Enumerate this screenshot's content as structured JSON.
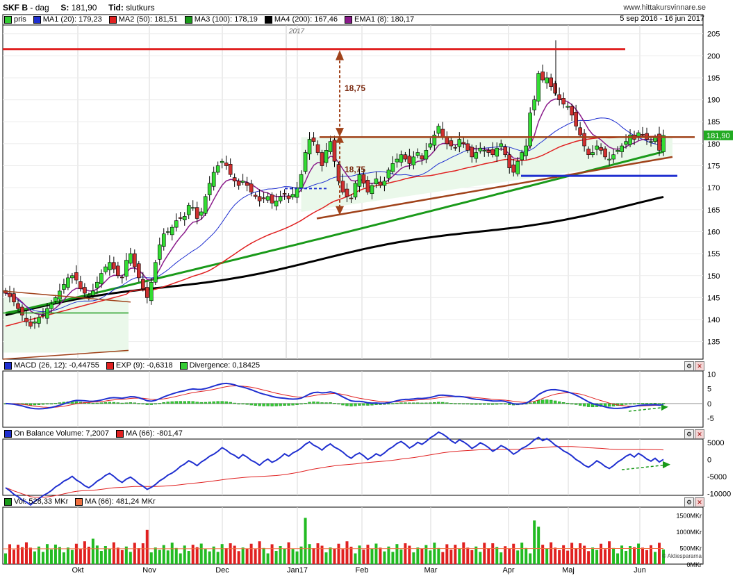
{
  "header": {
    "ticker": "SKF B",
    "interval": "dag",
    "last_label": "S:",
    "last_value": "181,90",
    "type_label": "Tid:",
    "type_value": "slutkurs",
    "site": "www.hittakursvinnare.se",
    "date_range": "5 sep 2016 - 16 jun 2017"
  },
  "main_legend": [
    {
      "label": "pris",
      "color": "#33cc33"
    },
    {
      "label": "MA1 (20): 179,23",
      "color": "#1f2fd0"
    },
    {
      "label": "MA2 (50): 181,51",
      "color": "#e02020"
    },
    {
      "label": "MA3 (100): 178,19",
      "color": "#1a9a1a"
    },
    {
      "label": "MA4 (200): 167,46",
      "color": "#000000"
    },
    {
      "label": "EMA1 (8): 180,17",
      "color": "#8a1a8a"
    }
  ],
  "macd_legend": [
    {
      "label": "MACD (26, 12): -0,44755",
      "color": "#1f2fd0"
    },
    {
      "label": "EXP (9): -0,6318",
      "color": "#e02020"
    },
    {
      "label": "Divergence: 0,18425",
      "color": "#33cc33"
    }
  ],
  "obv_legend": [
    {
      "label": "On Balance Volume: 7,2007",
      "color": "#1f2fd0"
    },
    {
      "label": "MA (66): -801,47",
      "color": "#e02020"
    }
  ],
  "vol_legend": [
    {
      "label": "Vol: 528,33 MKr",
      "color": "#1a9a1a"
    },
    {
      "label": "MA (66): 481,24 MKr",
      "color": "#f07040"
    }
  ],
  "last_price_tag": "181,90",
  "year_marker": "2017",
  "annotation_18_75_a": "18,75",
  "annotation_18_75_b": "18,75",
  "watermark": "© Aktiespararna",
  "chart_data": {
    "type": "candlestick",
    "months": [
      "Okt",
      "Nov",
      "Dec",
      "Jan17",
      "Feb",
      "Mar",
      "Apr",
      "Maj",
      "Jun"
    ],
    "price_axis": {
      "ticks": [
        135,
        140,
        145,
        150,
        155,
        160,
        165,
        170,
        175,
        180,
        185,
        190,
        195,
        200,
        205
      ],
      "ylim": [
        131,
        207
      ]
    },
    "macd_axis": {
      "ticks": [
        10,
        5,
        0,
        -5
      ],
      "ylim": [
        -8,
        11
      ]
    },
    "obv_axis": {
      "ticks": [
        "5000",
        "0",
        "-5000",
        "-10000"
      ],
      "ylim": [
        -10500,
        6000
      ]
    },
    "vol_axis": {
      "ticks": [
        "1500MKr",
        "1000MKr",
        "500MKr",
        "0MKr"
      ]
    },
    "close_prices": [
      146.0,
      145.2,
      144.0,
      142.5,
      141.0,
      139.5,
      138.5,
      139.5,
      140.5,
      141.0,
      142.5,
      143.5,
      145.0,
      146.5,
      148.0,
      149.5,
      150.0,
      149.0,
      147.0,
      146.0,
      145.5,
      146.5,
      148.5,
      150.5,
      152.0,
      153.0,
      151.5,
      150.0,
      149.5,
      153.5,
      155.0,
      152.0,
      149.5,
      147.0,
      145.0,
      148.5,
      153.0,
      157.0,
      159.5,
      160.0,
      161.0,
      162.5,
      163.0,
      163.5,
      166.0,
      165.5,
      163.0,
      164.5,
      168.0,
      171.0,
      173.5,
      175.0,
      176.0,
      175.0,
      173.0,
      171.5,
      170.5,
      171.5,
      170.5,
      169.0,
      168.0,
      167.0,
      167.5,
      168.0,
      166.5,
      167.0,
      168.0,
      168.5,
      167.5,
      168.5,
      170.0,
      173.0,
      178.0,
      181.0,
      180.5,
      178.0,
      175.0,
      178.5,
      180.5,
      176.0,
      171.5,
      169.0,
      168.0,
      167.5,
      171.0,
      173.0,
      171.0,
      169.0,
      170.5,
      172.0,
      170.5,
      171.5,
      174.0,
      175.5,
      176.5,
      177.5,
      176.5,
      175.5,
      177.0,
      178.0,
      176.5,
      178.5,
      180.0,
      182.0,
      184.0,
      181.5,
      180.0,
      179.5,
      179.0,
      181.0,
      180.0,
      178.5,
      177.0,
      178.0,
      179.0,
      178.5,
      178.0,
      177.5,
      179.0,
      180.0,
      177.5,
      174.5,
      173.5,
      176.0,
      178.0,
      179.5,
      187.0,
      190.0,
      196.0,
      194.5,
      195.0,
      193.0,
      191.5,
      190.0,
      189.0,
      188.5,
      186.5,
      184.0,
      182.0,
      179.5,
      177.5,
      178.0,
      179.5,
      178.5,
      177.0,
      176.5,
      177.5,
      178.5,
      179.5,
      180.5,
      182.0,
      181.0,
      182.5,
      182.0,
      181.0,
      180.5,
      181.5,
      178.5,
      181.9
    ],
    "ma20_end": 179.23,
    "ma50_end": 181.51,
    "ma100_end": 178.19,
    "ma200_end": 167.46,
    "ema8_end": 180.17,
    "macd_end": -0.44755,
    "macd_signal_end": -0.6318,
    "macd_divergence_end": 0.18425,
    "obv_end": 7.2007,
    "obv_ma66_end": -801.47,
    "volume_end_mkr": 528.33,
    "volume_ma66_mkr": 481.24,
    "resistance_level": 201.5,
    "support_level": 172.7,
    "range_top": 181.5,
    "range_height": 18.75
  }
}
